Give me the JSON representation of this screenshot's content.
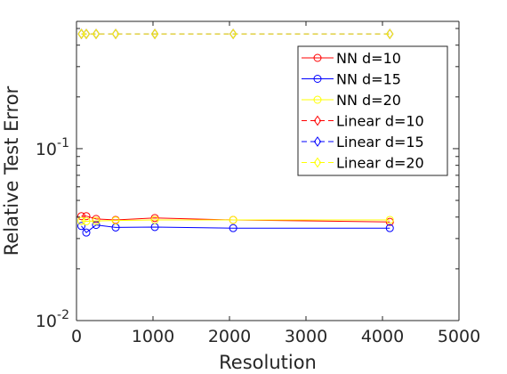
{
  "chart_data": {
    "type": "line",
    "xlabel": "Resolution",
    "ylabel": "Relative Test Error",
    "xlim": [
      0,
      5000
    ],
    "ylim": [
      0.01,
      0.55
    ],
    "yscale": "log",
    "grid": false,
    "legend_location": "top-right",
    "x_ticks": [
      {
        "value": 0,
        "label": "0"
      },
      {
        "value": 1000,
        "label": "1000"
      },
      {
        "value": 2000,
        "label": "2000"
      },
      {
        "value": 3000,
        "label": "3000"
      },
      {
        "value": 4000,
        "label": "4000"
      },
      {
        "value": 5000,
        "label": "5000"
      }
    ],
    "y_ticks": [
      {
        "value": 0.01,
        "base": "10",
        "exp": "-2"
      },
      {
        "value": 0.1,
        "base": "10",
        "exp": "-1"
      }
    ],
    "series": [
      {
        "name": "NN d=10",
        "color": "#ff0000",
        "marker": "circle",
        "dashed": false,
        "x": [
          64,
          128,
          256,
          512,
          1024,
          2048,
          4096
        ],
        "y": [
          0.0405,
          0.0405,
          0.039,
          0.0385,
          0.0395,
          0.0385,
          0.0375
        ]
      },
      {
        "name": "NN d=15",
        "color": "#0000ff",
        "marker": "circle",
        "dashed": false,
        "x": [
          64,
          128,
          256,
          512,
          1024,
          2048,
          4096
        ],
        "y": [
          0.0355,
          0.0325,
          0.036,
          0.0348,
          0.035,
          0.0345,
          0.0345
        ]
      },
      {
        "name": "NN d=20",
        "color": "#ffff00",
        "marker": "circle",
        "dashed": false,
        "x": [
          64,
          128,
          256,
          512,
          1024,
          2048,
          4096
        ],
        "y": [
          0.038,
          0.0378,
          0.038,
          0.0382,
          0.0385,
          0.0385,
          0.0385
        ]
      },
      {
        "name": "Linear d=10",
        "color": "#ff0000",
        "marker": "diamond",
        "dashed": true,
        "x": [
          64,
          128,
          256,
          512,
          1024,
          2048,
          4096
        ],
        "y": [
          0.465,
          0.465,
          0.465,
          0.465,
          0.465,
          0.465,
          0.465
        ]
      },
      {
        "name": "Linear d=15",
        "color": "#0000ff",
        "marker": "diamond",
        "dashed": true,
        "x": [
          64,
          128,
          256,
          512,
          1024,
          2048,
          4096
        ],
        "y": [
          0.465,
          0.465,
          0.465,
          0.465,
          0.465,
          0.465,
          0.465
        ]
      },
      {
        "name": "Linear d=20",
        "color": "#ffff00",
        "marker": "diamond",
        "dashed": true,
        "x": [
          64,
          128,
          256,
          512,
          1024,
          2048,
          4096
        ],
        "y": [
          0.465,
          0.465,
          0.465,
          0.465,
          0.465,
          0.465,
          0.465
        ]
      }
    ]
  }
}
